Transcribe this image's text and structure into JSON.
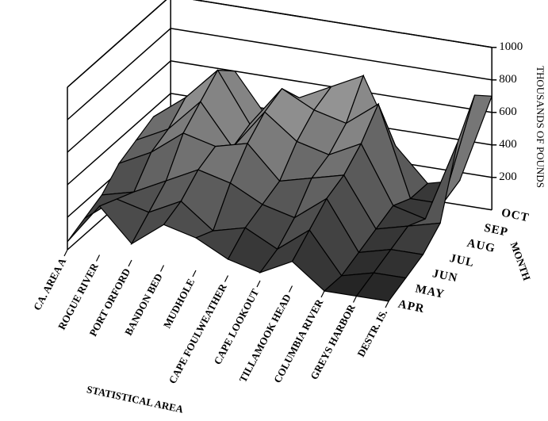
{
  "chart_data": {
    "type": "surface",
    "x_label": "STATISTICAL AREA",
    "y_label": "MONTH",
    "z_label": "THOUSANDS OF POUNDS",
    "categories": [
      "CA. AREA A",
      "ROGUE RIVER",
      "PORT ORFORD",
      "BANDON BED",
      "MUDHOLE",
      "CAPE FOULWEATHER",
      "CAPE LOOKOUT",
      "TILLAMOOK HEAD",
      "COLUMBIA RIVER",
      "GREYS HARBOR",
      "DESTR. IS."
    ],
    "series": [
      {
        "name": "APR",
        "values": [
          50,
          300,
          100,
          250,
          200,
          100,
          50,
          150,
          0,
          0,
          0
        ]
      },
      {
        "name": "MAY",
        "values": [
          100,
          250,
          200,
          300,
          150,
          200,
          100,
          250,
          0,
          50,
          50
        ]
      },
      {
        "name": "JUN",
        "values": [
          150,
          200,
          300,
          400,
          350,
          250,
          200,
          350,
          50,
          100,
          100
        ]
      },
      {
        "name": "JUL",
        "values": [
          250,
          350,
          500,
          450,
          500,
          300,
          350,
          400,
          100,
          150,
          200
        ]
      },
      {
        "name": "AUG",
        "values": [
          300,
          400,
          600,
          350,
          600,
          450,
          400,
          500,
          150,
          100,
          600
        ]
      },
      {
        "name": "SEP",
        "values": [
          350,
          500,
          700,
          400,
          650,
          550,
          500,
          650,
          100,
          100,
          800
        ]
      },
      {
        "name": "OCT",
        "values": [
          300,
          450,
          600,
          350,
          500,
          600,
          700,
          300,
          100,
          150,
          700
        ]
      }
    ],
    "zlim": [
      0,
      1000
    ],
    "zticks": [
      200,
      400,
      600,
      800,
      1000
    ],
    "grid": true
  }
}
